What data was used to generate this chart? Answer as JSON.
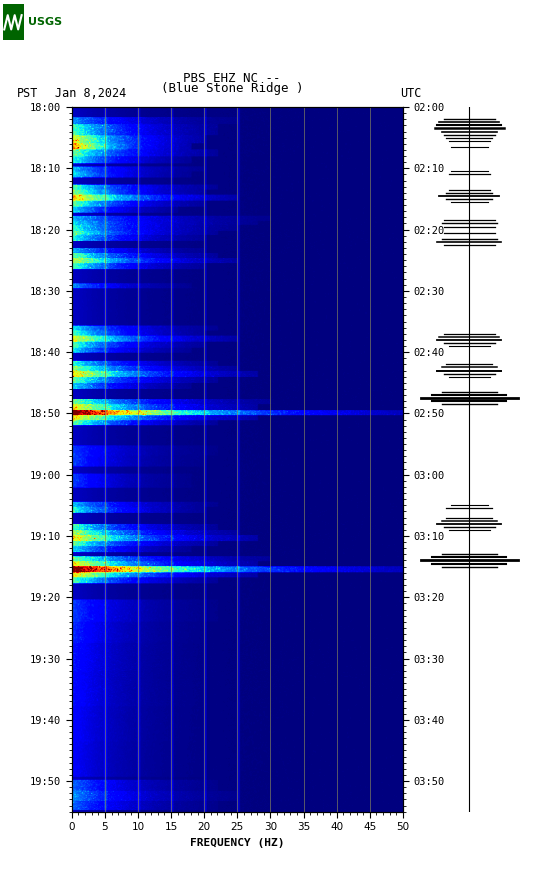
{
  "title_line1": "PBS EHZ NC --",
  "title_line2": "(Blue Stone Ridge )",
  "date_label": "Jan 8,2024",
  "pst_label": "PST",
  "utc_label": "UTC",
  "xlabel": "FREQUENCY (HZ)",
  "xlim": [
    0,
    50
  ],
  "xticks": [
    0,
    5,
    10,
    15,
    20,
    25,
    30,
    35,
    40,
    45,
    50
  ],
  "yticks_pst": [
    "18:00",
    "18:10",
    "18:20",
    "18:30",
    "18:40",
    "18:50",
    "19:00",
    "19:10",
    "19:20",
    "19:30",
    "19:40",
    "19:50"
  ],
  "yticks_utc": [
    "02:00",
    "02:10",
    "02:20",
    "02:30",
    "02:40",
    "02:50",
    "03:00",
    "03:10",
    "03:20",
    "03:30",
    "03:40",
    "03:50"
  ],
  "vlines_x": [
    5,
    10,
    15,
    20,
    25,
    30,
    35,
    40,
    45
  ],
  "vline_color": "#808060",
  "background_color": "#00008B",
  "fig_bg": "#ffffff",
  "usgs_green": "#006400"
}
